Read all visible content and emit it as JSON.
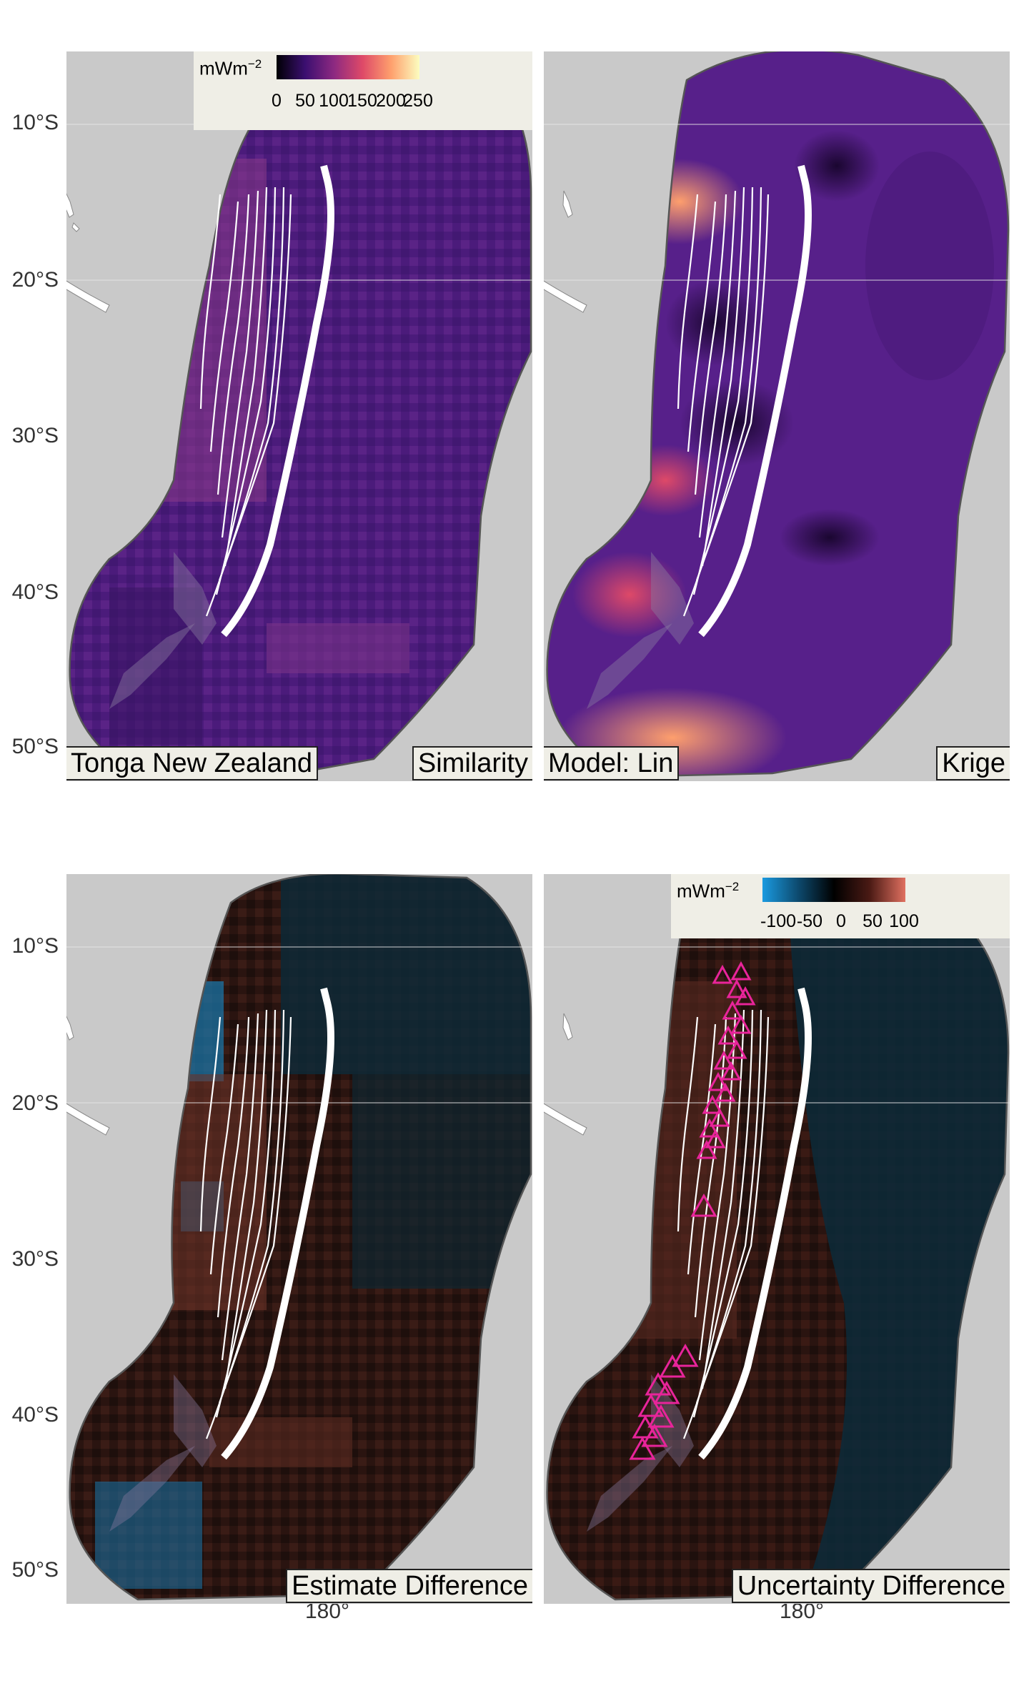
{
  "y_axis_labels": [
    "10°S",
    "20°S",
    "30°S",
    "40°S",
    "50°S"
  ],
  "x_axis_label": "180°",
  "panels": {
    "top_left": {
      "left_tag": "Tonga New Zealand",
      "right_tag": "Similarity"
    },
    "top_right": {
      "left_tag": "Model: Lin",
      "right_tag": "Krige"
    },
    "bottom_left": {
      "right_tag": "Estimate Difference"
    },
    "bottom_right": {
      "right_tag": "Uncertainty Difference"
    }
  },
  "legend_heatflow": {
    "unit": "mWm",
    "unit_exp": "−2",
    "ticks": [
      "0",
      "50",
      "100",
      "150",
      "200",
      "250"
    ],
    "colors": [
      "#000004",
      "#3b0f70",
      "#8c2981",
      "#de4968",
      "#fe9f6d",
      "#fcfdbf"
    ]
  },
  "legend_difference": {
    "unit": "mWm",
    "unit_exp": "−2",
    "ticks": [
      "-100",
      "-50",
      "0",
      "50",
      "100"
    ],
    "colors": [
      "#1a9ae0",
      "#0d4a6e",
      "#000000",
      "#4a1a14",
      "#e07060"
    ]
  },
  "colors": {
    "panel_bg": "#c9c9c9",
    "magma_mid": "#4a1a7a",
    "diff_dark_brown": "#2a1410",
    "diff_dark_blue": "#0c2a3a",
    "marker_pink": "#e8249a",
    "trench_white": "#ffffff"
  }
}
